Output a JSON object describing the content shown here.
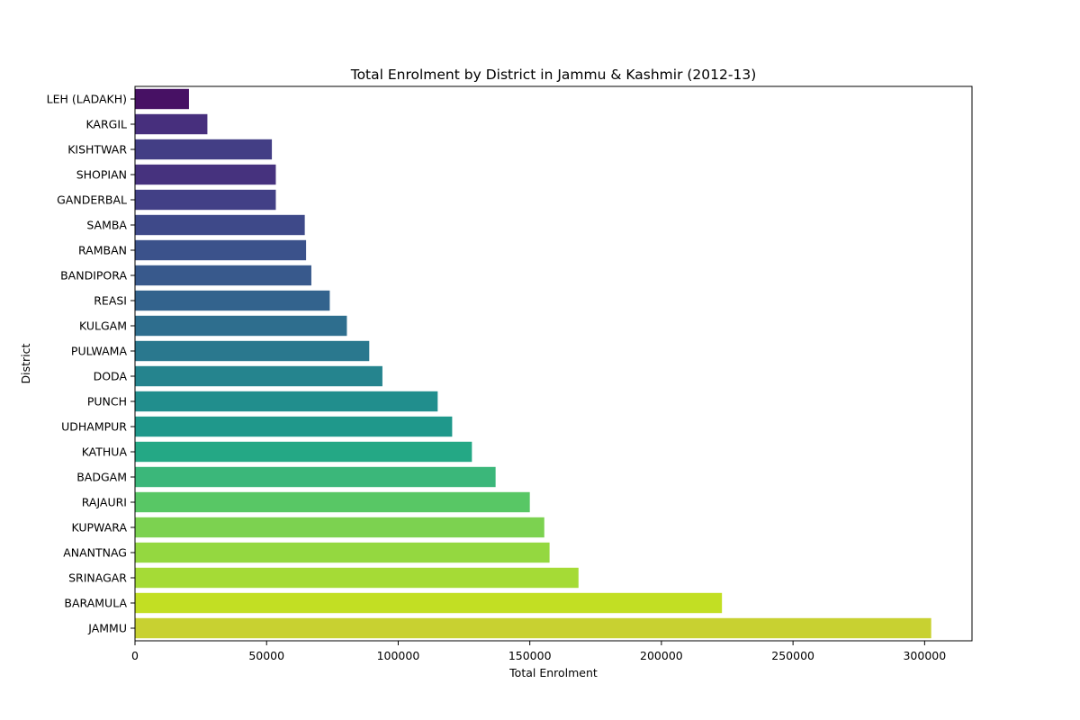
{
  "chart_data": {
    "type": "bar",
    "orientation": "horizontal",
    "title": "Total Enrolment by District in Jammu & Kashmir (2012-13)",
    "xlabel": "Total Enrolment",
    "ylabel": "District",
    "xlim": [
      0,
      318000
    ],
    "xticks": [
      0,
      50000,
      100000,
      150000,
      200000,
      250000,
      300000
    ],
    "grid": false,
    "legend": "none",
    "colormap": "viridis",
    "categories": [
      "LEH (LADAKH)",
      "KARGIL",
      "KISHTWAR",
      "SHOPIAN",
      "GANDERBAL",
      "SAMBA",
      "RAMBAN",
      "BANDIPORA",
      "REASI",
      "KULGAM",
      "PULWAMA",
      "DODA",
      "PUNCH",
      "UDHAMPUR",
      "KATHUA",
      "BADGAM",
      "RAJAURI",
      "KUPWARA",
      "ANANTNAG",
      "SRINAGAR",
      "BARAMULA",
      "JAMMU"
    ],
    "values": [
      20500,
      27500,
      52000,
      53500,
      53500,
      64500,
      65000,
      67000,
      74000,
      80500,
      89000,
      94000,
      115000,
      120500,
      128000,
      137000,
      150000,
      155500,
      157500,
      168500,
      223000,
      302500
    ],
    "colors": [
      "#471164",
      "#472f7d",
      "#433e85",
      "#46327e",
      "#424086",
      "#3e4989",
      "#3b528b",
      "#38598c",
      "#33638d",
      "#2e6e8e",
      "#2a788e",
      "#25848e",
      "#218e8d",
      "#1f988b",
      "#24a885",
      "#3bb77a",
      "#58c765",
      "#7cd250",
      "#94d840",
      "#a5db36",
      "#c2df23",
      "#c8d131"
    ]
  }
}
